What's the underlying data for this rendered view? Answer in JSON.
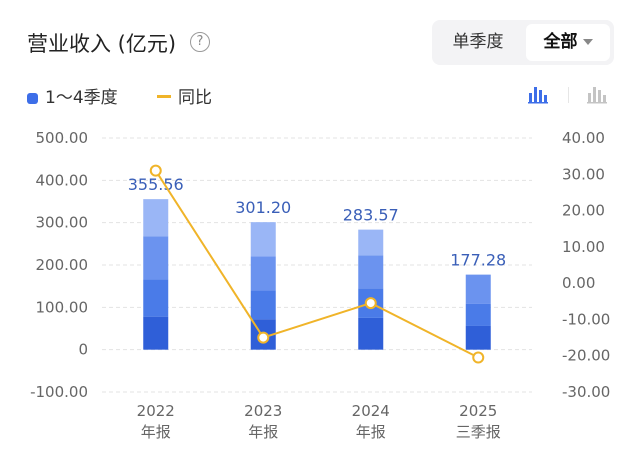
{
  "header": {
    "title": "营业收入 (亿元)",
    "help_glyph": "?",
    "segments": [
      {
        "label": "单季度",
        "active": false
      },
      {
        "label": "全部",
        "active": true
      }
    ]
  },
  "legend": {
    "bars_label": "1～4季度",
    "line_label": "同比"
  },
  "colors": {
    "q1": "#2f5fd8",
    "q2": "#4a7be8",
    "q3": "#6b93ef",
    "q4": "#9ab6f6",
    "line": "#f0b429",
    "label": "#3a5fb8",
    "grid": "#e3e3e3"
  },
  "icons": [
    "help-icon",
    "bar-chart-icon",
    "stacked-chart-icon",
    "caret-down-icon"
  ],
  "chart_data": {
    "type": "bar",
    "stacked": true,
    "categories": [
      [
        "2022",
        "年报"
      ],
      [
        "2023",
        "年报"
      ],
      [
        "2024",
        "年报"
      ],
      [
        "2025",
        "三季报"
      ]
    ],
    "series": [
      {
        "values": [
          78,
          72,
          75,
          56
        ]
      },
      {
        "values": [
          88,
          68,
          70,
          52
        ]
      },
      {
        "values": [
          102,
          80,
          78,
          69.28
        ]
      },
      {
        "values": [
          87.56,
          81.2,
          60.57,
          0
        ]
      }
    ],
    "totals": [
      355.56,
      301.2,
      283.57,
      177.28
    ],
    "total_labels": [
      "355.56",
      "301.20",
      "283.57",
      "177.28"
    ],
    "line": {
      "values": [
        31,
        -15,
        -5.5,
        -20.5
      ]
    },
    "y_left": {
      "min": -100,
      "max": 500,
      "ticks": [
        "500.00",
        "400.00",
        "300.00",
        "200.00",
        "100.00",
        "0",
        "-100.00"
      ]
    },
    "y_right": {
      "min": -30,
      "max": 40,
      "ticks": [
        "40.00",
        "30.00",
        "20.00",
        "10.00",
        "0.00",
        "-10.00",
        "-20.00",
        "-30.00"
      ]
    },
    "grid": true,
    "legend_position": "top-left"
  }
}
